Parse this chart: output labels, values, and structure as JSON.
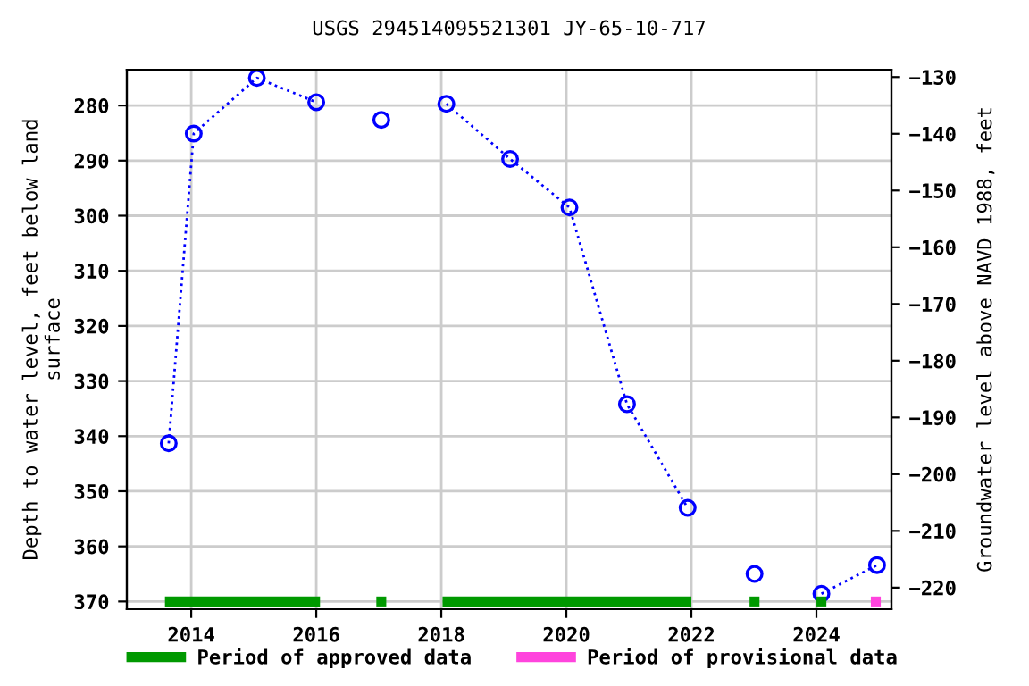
{
  "chart_data": {
    "type": "line",
    "title": "USGS 294514095521301 JY-65-10-717",
    "ylabel": "Depth to water level, feet below land\nsurface",
    "y2label": "Groundwater level above NAVD 1988, feet",
    "series": [
      {
        "color": "#0000ff",
        "x": [
          2013.64,
          2014.04,
          2015.05,
          2016.0
        ],
        "values": [
          341.3,
          285.1,
          275.0,
          279.4
        ]
      },
      {
        "type": "scatter",
        "color": "#0000ff",
        "x": [
          2017.04
        ],
        "values": [
          282.6
        ]
      },
      {
        "color": "#0000ff",
        "x": [
          2018.08,
          2019.1,
          2020.05,
          2020.97,
          2021.94
        ],
        "values": [
          279.7,
          289.7,
          298.5,
          334.2,
          353.0
        ]
      },
      {
        "type": "scatter",
        "color": "#0000ff",
        "x": [
          2023.01
        ],
        "values": [
          365.0
        ]
      },
      {
        "color": "#0000ff",
        "x": [
          2024.08,
          2024.97
        ],
        "values": [
          368.6,
          363.4
        ]
      },
      {
        "name": "Period of approved data",
        "color": "#009900",
        "line_style": "solid",
        "marker": "none",
        "x": [
          2013.58,
          2016.06,
          2017.0,
          2018.02,
          2022.0
        ],
        "values": [
          370,
          370,
          null,
          370,
          370
        ]
      },
      {
        "type": "scatter",
        "color": "#009900",
        "marker": "square",
        "x": [
          2017.04,
          2023.01,
          2024.08
        ],
        "values": [
          370,
          370,
          370
        ]
      },
      {
        "name": "Period of provisional data",
        "type": "scatter",
        "color": "#ff44dd",
        "marker": "square",
        "x": [
          2024.95
        ],
        "values": [
          370
        ]
      }
    ],
    "xlim": [
      2012.97,
      2025.2
    ],
    "xticks": [
      2014,
      2016,
      2018,
      2020,
      2022,
      2024
    ],
    "ylim": [
      371.4,
      273.5
    ],
    "yticks": [
      280,
      290,
      300,
      310,
      320,
      330,
      340,
      350,
      360,
      370
    ],
    "y2lim": [
      -223.8,
      -128.7
    ],
    "y2ticks": [
      -130,
      -140,
      -150,
      -160,
      -170,
      -180,
      -190,
      -200,
      -210,
      -220
    ],
    "grid": true,
    "marker": "circle",
    "line_style": "dotted",
    "legend": "bottom"
  }
}
